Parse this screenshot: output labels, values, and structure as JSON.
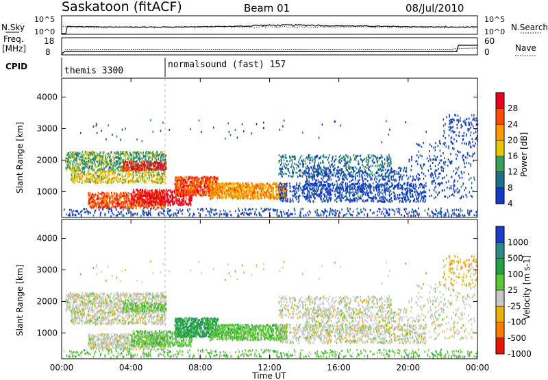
{
  "header": {
    "station": "Saskatoon (fitACF)",
    "beam": "Beam 01",
    "date": "08/Jul/2010"
  },
  "top_panels": {
    "nsky_label": "N.Sky",
    "nsky_ticks": [
      "10^5",
      "10^0"
    ],
    "nsearch_label": "N.Search",
    "nsearch_ticks": [
      "10^5",
      "10^0"
    ],
    "freq_label": "Freq.",
    "freq_unit": "[MHz]",
    "freq_ticks": [
      "18",
      "8"
    ],
    "nave_label": "Nave",
    "nave_ticks": [
      "60",
      "0"
    ],
    "cpid_label": "CPID",
    "cpid_segments": [
      {
        "label": "themis 3300",
        "start_hour": 0
      },
      {
        "label": "normalsound (fast) 157",
        "start_hour": 6
      }
    ]
  },
  "chart_data": [
    {
      "type": "heatmap",
      "title": "Power",
      "ylabel": "Slant Range [km]",
      "xlabel": "",
      "ylim": [
        180,
        4600
      ],
      "x_ticks": [
        "00:00",
        "04:00",
        "08:00",
        "12:00",
        "16:00",
        "20:00",
        "00:00"
      ],
      "y_ticks": [
        1000,
        2000,
        3000,
        4000
      ],
      "colorbar": {
        "label": "Power [dB]",
        "ticks": [
          "28",
          "24",
          "20",
          "16",
          "12",
          "8",
          "4"
        ],
        "colors": [
          "#e8001c",
          "#ff4a00",
          "#ff9a00",
          "#e8c800",
          "#39a05a",
          "#1c6f8a",
          "#1438c8"
        ]
      }
    },
    {
      "type": "heatmap",
      "title": "Velocity",
      "ylabel": "Slant Range [km]",
      "xlabel": "Time UT",
      "ylim": [
        180,
        4600
      ],
      "x_ticks": [
        "00:00",
        "04:00",
        "08:00",
        "12:00",
        "16:00",
        "20:00",
        "00:00"
      ],
      "y_ticks": [
        1000,
        2000,
        3000,
        4000
      ],
      "colorbar": {
        "label": "Velocity [m s-1]",
        "ticks": [
          "1000",
          "500",
          "100",
          "25",
          "-25",
          "-100",
          "-500",
          "-1000"
        ],
        "colors": [
          "#1e3cc8",
          "#2e8a8a",
          "#22a046",
          "#5ac832",
          "#c8c8c8",
          "#e8b400",
          "#ff7800",
          "#e81400"
        ]
      }
    }
  ]
}
